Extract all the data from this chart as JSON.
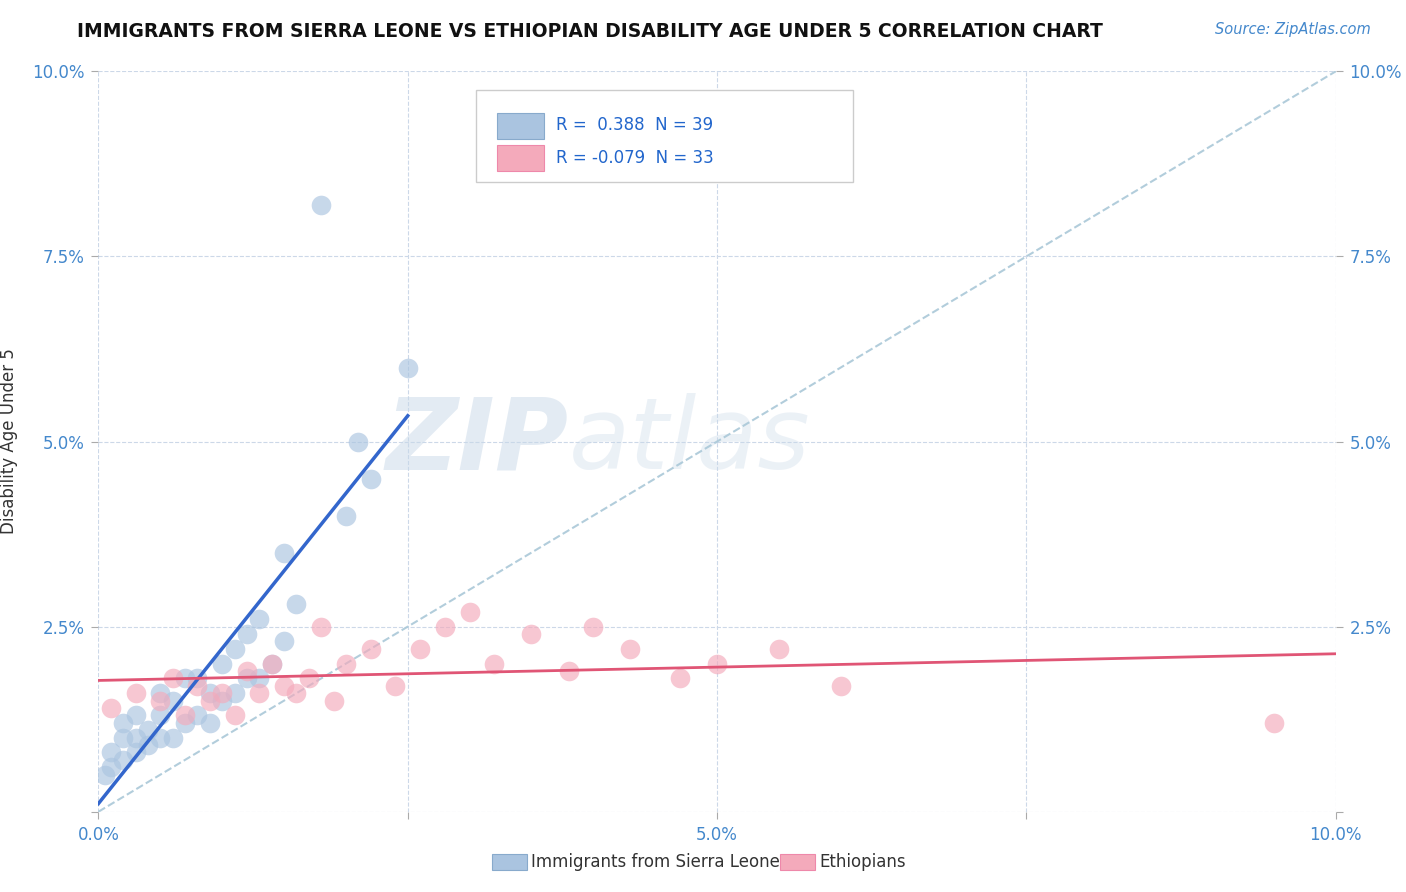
{
  "title": "IMMIGRANTS FROM SIERRA LEONE VS ETHIOPIAN DISABILITY AGE UNDER 5 CORRELATION CHART",
  "source": "Source: ZipAtlas.com",
  "ylabel": "Disability Age Under 5",
  "xlim": [
    0.0,
    0.1
  ],
  "ylim": [
    0.0,
    0.1
  ],
  "xticks": [
    0.0,
    0.025,
    0.05,
    0.075,
    0.1
  ],
  "yticks": [
    0.0,
    0.025,
    0.05,
    0.075,
    0.1
  ],
  "xtick_labels": [
    "0.0%",
    "",
    "5.0%",
    "",
    "10.0%"
  ],
  "ytick_labels": [
    "",
    "2.5%",
    "5.0%",
    "7.5%",
    "10.0%"
  ],
  "sierra_leone_R": 0.388,
  "sierra_leone_N": 39,
  "ethiopian_R": -0.079,
  "ethiopian_N": 33,
  "sierra_leone_color": "#aac4e0",
  "ethiopian_color": "#f4aabb",
  "sierra_leone_line_color": "#3366cc",
  "ethiopian_line_color": "#e05575",
  "diagonal_color": "#aac8d8",
  "background_color": "#ffffff",
  "grid_color": "#ccd8e8",
  "sierra_leone_x": [
    0.0005,
    0.001,
    0.001,
    0.002,
    0.002,
    0.002,
    0.003,
    0.003,
    0.003,
    0.004,
    0.004,
    0.005,
    0.005,
    0.005,
    0.006,
    0.006,
    0.007,
    0.007,
    0.008,
    0.008,
    0.009,
    0.009,
    0.01,
    0.01,
    0.011,
    0.011,
    0.012,
    0.012,
    0.013,
    0.013,
    0.014,
    0.015,
    0.015,
    0.016,
    0.018,
    0.02,
    0.021,
    0.025,
    0.022
  ],
  "sierra_leone_y": [
    0.005,
    0.006,
    0.008,
    0.007,
    0.01,
    0.012,
    0.008,
    0.01,
    0.013,
    0.009,
    0.011,
    0.01,
    0.013,
    0.016,
    0.01,
    0.015,
    0.012,
    0.018,
    0.013,
    0.018,
    0.012,
    0.016,
    0.015,
    0.02,
    0.016,
    0.022,
    0.018,
    0.024,
    0.018,
    0.026,
    0.02,
    0.023,
    0.035,
    0.028,
    0.082,
    0.04,
    0.05,
    0.06,
    0.045
  ],
  "ethiopian_x": [
    0.001,
    0.003,
    0.005,
    0.006,
    0.007,
    0.008,
    0.009,
    0.01,
    0.011,
    0.012,
    0.013,
    0.014,
    0.015,
    0.016,
    0.017,
    0.018,
    0.019,
    0.02,
    0.022,
    0.024,
    0.026,
    0.028,
    0.03,
    0.032,
    0.035,
    0.038,
    0.04,
    0.043,
    0.047,
    0.05,
    0.055,
    0.06,
    0.095
  ],
  "ethiopian_y": [
    0.014,
    0.016,
    0.015,
    0.018,
    0.013,
    0.017,
    0.015,
    0.016,
    0.013,
    0.019,
    0.016,
    0.02,
    0.017,
    0.016,
    0.018,
    0.025,
    0.015,
    0.02,
    0.022,
    0.017,
    0.022,
    0.025,
    0.027,
    0.02,
    0.024,
    0.019,
    0.025,
    0.022,
    0.018,
    0.02,
    0.022,
    0.017,
    0.012
  ],
  "watermark_zip": "ZIP",
  "watermark_atlas": "atlas",
  "legend_label_sierra": "Immigrants from Sierra Leone",
  "legend_label_ethiopian": "Ethiopians",
  "sl_line_x": [
    0.0,
    0.025
  ],
  "sl_line_y_start": 0.004,
  "et_line_x": [
    0.0,
    0.1
  ]
}
